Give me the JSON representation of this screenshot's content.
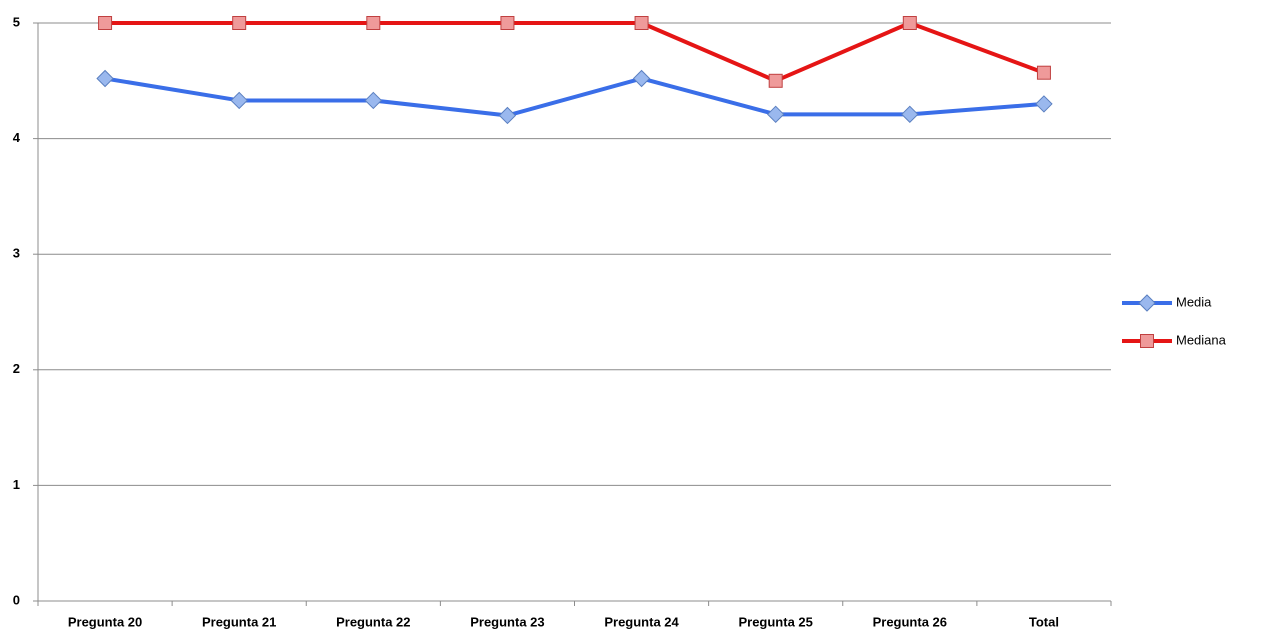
{
  "chart_data": {
    "type": "line",
    "categories": [
      "Pregunta 20",
      "Pregunta 21",
      "Pregunta 22",
      "Pregunta 23",
      "Pregunta 24",
      "Pregunta 25",
      "Pregunta 26",
      "Total"
    ],
    "series": [
      {
        "name": "Media",
        "color": "#3a6ee8",
        "marker": "diamond",
        "values": [
          4.52,
          4.33,
          4.33,
          4.2,
          4.52,
          4.21,
          4.21,
          4.3
        ]
      },
      {
        "name": "Mediana",
        "color": "#e51515",
        "marker": "square",
        "values": [
          5,
          5,
          5,
          5,
          5,
          4.5,
          5,
          4.57
        ]
      }
    ],
    "ylim": [
      0,
      5
    ],
    "yticks": [
      0,
      1,
      2,
      3,
      4,
      5
    ],
    "grid": true,
    "legend": "right"
  }
}
